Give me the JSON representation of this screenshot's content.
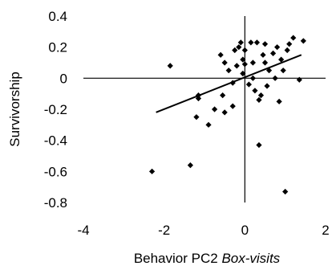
{
  "chart_data": {
    "type": "scatter",
    "title": "",
    "xlabel_prefix": "Behavior PC2 ",
    "xlabel_italic": "Box-visits",
    "ylabel": "Survivorship",
    "xlim": [
      -4,
      2
    ],
    "ylim": [
      -0.8,
      0.4
    ],
    "x_ticks": [
      -4,
      -2,
      0,
      2
    ],
    "x_tick_labels": [
      "-4",
      "-2",
      "0",
      "2"
    ],
    "y_ticks": [
      0.4,
      0.2,
      0,
      -0.2,
      -0.4,
      -0.6,
      -0.8
    ],
    "y_tick_labels": [
      "0.4",
      "0.2",
      "0",
      "-0.2",
      "-0.4",
      "-0.6",
      "-0.8"
    ],
    "grid": false,
    "legend": "none",
    "point_color": "#000000",
    "trend_line": {
      "x": [
        -2.2,
        1.4
      ],
      "y": [
        -0.22,
        0.15
      ]
    },
    "points": [
      {
        "x": -2.3,
        "y": -0.6
      },
      {
        "x": -1.85,
        "y": 0.08
      },
      {
        "x": -1.35,
        "y": -0.56
      },
      {
        "x": -1.2,
        "y": -0.25
      },
      {
        "x": -1.15,
        "y": -0.13
      },
      {
        "x": -1.15,
        "y": -0.11
      },
      {
        "x": -0.9,
        "y": -0.3
      },
      {
        "x": -0.75,
        "y": -0.2
      },
      {
        "x": -0.6,
        "y": 0.15
      },
      {
        "x": -0.55,
        "y": -0.11
      },
      {
        "x": -0.5,
        "y": -0.22
      },
      {
        "x": -0.5,
        "y": 0.1
      },
      {
        "x": -0.4,
        "y": 0.05
      },
      {
        "x": -0.3,
        "y": -0.18
      },
      {
        "x": -0.3,
        "y": -0.03
      },
      {
        "x": -0.25,
        "y": 0.18
      },
      {
        "x": -0.2,
        "y": 0.08
      },
      {
        "x": -0.15,
        "y": 0.2
      },
      {
        "x": -0.1,
        "y": 0.23
      },
      {
        "x": -0.05,
        "y": 0.12
      },
      {
        "x": -0.05,
        "y": 0.03
      },
      {
        "x": 0.0,
        "y": 0.18
      },
      {
        "x": 0.0,
        "y": 0.09
      },
      {
        "x": 0.1,
        "y": -0.04
      },
      {
        "x": 0.15,
        "y": 0.23
      },
      {
        "x": 0.2,
        "y": 0.1
      },
      {
        "x": 0.2,
        "y": 0.0
      },
      {
        "x": 0.25,
        "y": -0.08
      },
      {
        "x": 0.3,
        "y": 0.23
      },
      {
        "x": 0.35,
        "y": -0.14
      },
      {
        "x": 0.35,
        "y": -0.43
      },
      {
        "x": 0.4,
        "y": -0.11
      },
      {
        "x": 0.45,
        "y": 0.15
      },
      {
        "x": 0.5,
        "y": 0.22
      },
      {
        "x": 0.5,
        "y": 0.1
      },
      {
        "x": 0.55,
        "y": -0.05
      },
      {
        "x": 0.6,
        "y": 0.05
      },
      {
        "x": 0.7,
        "y": 0.16
      },
      {
        "x": 0.75,
        "y": 0.0
      },
      {
        "x": 0.8,
        "y": 0.2
      },
      {
        "x": 0.85,
        "y": -0.15
      },
      {
        "x": 0.9,
        "y": 0.12
      },
      {
        "x": 0.95,
        "y": 0.05
      },
      {
        "x": 1.0,
        "y": -0.73
      },
      {
        "x": 1.05,
        "y": 0.18
      },
      {
        "x": 1.1,
        "y": 0.22
      },
      {
        "x": 1.2,
        "y": 0.26
      },
      {
        "x": 1.35,
        "y": -0.01
      },
      {
        "x": 1.45,
        "y": 0.24
      }
    ]
  }
}
